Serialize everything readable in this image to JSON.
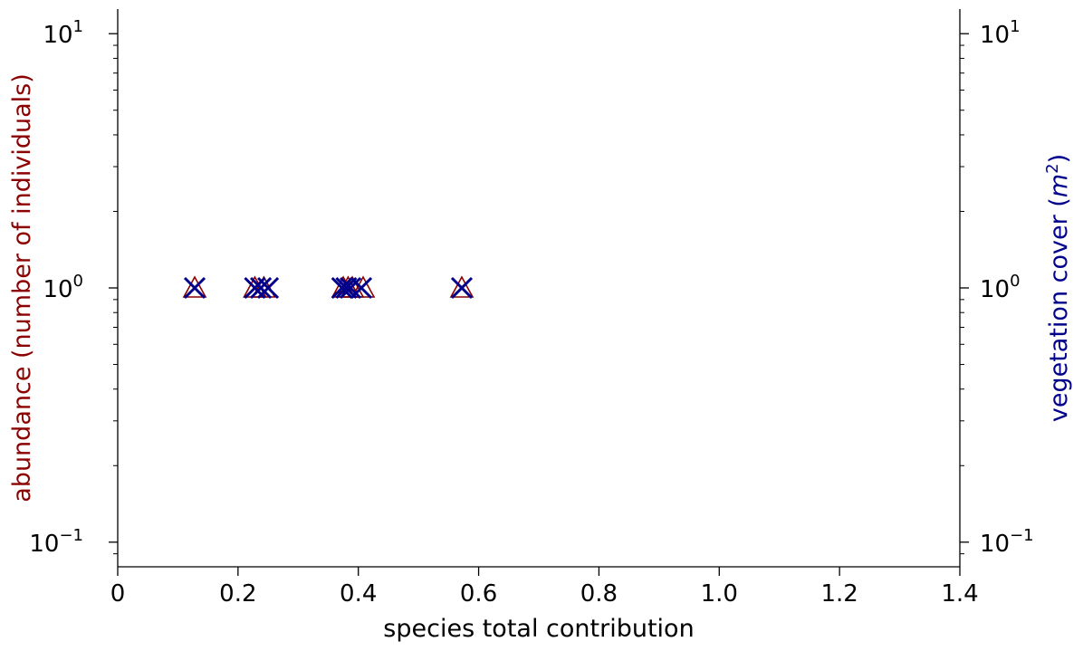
{
  "chart_data": {
    "type": "scatter",
    "xlabel": "species total contribution",
    "ylabel_left": "abundance  (number of individuals)",
    "ylabel_right_text": "vegetation cover (",
    "ylabel_right_math": "m",
    "ylabel_right_exp": "2",
    "ylabel_right_close": ")",
    "xlim": [
      0,
      1.4
    ],
    "ylim_left": [
      0.08,
      12.5
    ],
    "ylim_right": [
      0.08,
      12.5
    ],
    "yscale": "log",
    "grid": false,
    "x_ticks": [
      {
        "value": 0,
        "label": "0"
      },
      {
        "value": 0.2,
        "label": "0.2"
      },
      {
        "value": 0.4,
        "label": "0.4"
      },
      {
        "value": 0.6,
        "label": "0.6"
      },
      {
        "value": 0.8,
        "label": "0.8"
      },
      {
        "value": 1.0,
        "label": "1.0"
      },
      {
        "value": 1.2,
        "label": "1.2"
      },
      {
        "value": 1.4,
        "label": "1.4"
      }
    ],
    "y_ticks": [
      {
        "value": 0.1,
        "base": "10",
        "exp": "−1"
      },
      {
        "value": 1,
        "base": "10",
        "exp": "0"
      },
      {
        "value": 10,
        "base": "10",
        "exp": "1"
      }
    ],
    "series": [
      {
        "axis": "left",
        "marker": "triangle",
        "color": "#8b0000",
        "points": [
          {
            "x": 0.128,
            "y": 1
          },
          {
            "x": 0.228,
            "y": 1
          },
          {
            "x": 0.243,
            "y": 1
          },
          {
            "x": 0.375,
            "y": 1
          },
          {
            "x": 0.383,
            "y": 1
          },
          {
            "x": 0.39,
            "y": 1
          },
          {
            "x": 0.408,
            "y": 1
          },
          {
            "x": 0.572,
            "y": 1
          }
        ]
      },
      {
        "axis": "right",
        "marker": "x",
        "color": "#00008b",
        "points": [
          {
            "x": 0.128,
            "y": 1
          },
          {
            "x": 0.228,
            "y": 1
          },
          {
            "x": 0.238,
            "y": 1
          },
          {
            "x": 0.25,
            "y": 1
          },
          {
            "x": 0.373,
            "y": 1
          },
          {
            "x": 0.38,
            "y": 1
          },
          {
            "x": 0.387,
            "y": 1
          },
          {
            "x": 0.405,
            "y": 1
          },
          {
            "x": 0.572,
            "y": 1
          }
        ]
      }
    ],
    "colors": {
      "left_label": "#8b0000",
      "right_label": "#00008b",
      "axis": "#000000"
    }
  }
}
